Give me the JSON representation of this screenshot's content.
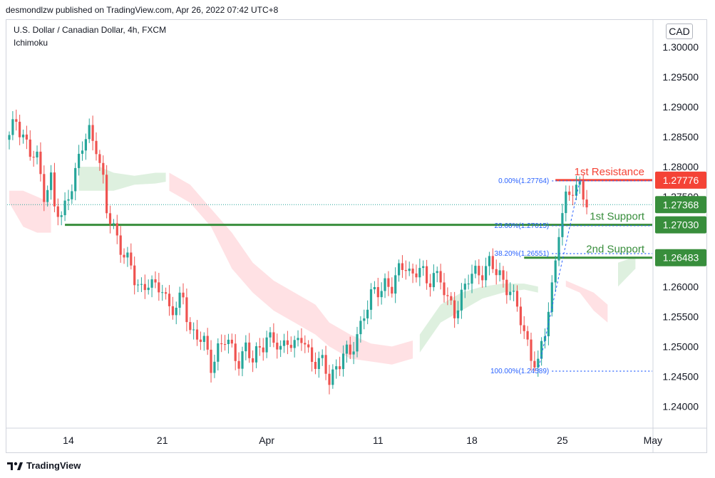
{
  "header": {
    "published": "desmondlzw published on TradingView.com, Apr 26, 2022 07:42 UTC+8"
  },
  "chart_header": {
    "symbol_line": "U.S. Dollar / Canadian Dollar, 4h, FXCM",
    "indicator": "Ichimoku",
    "currency": "CAD"
  },
  "footer": {
    "brand": "TradingView"
  },
  "colors": {
    "up": "#26a69a",
    "down": "#ef5350",
    "support": "#388e3c",
    "resistance": "#f44336",
    "fib": "#2962ff",
    "cloud_bull": "#c8e6c9",
    "cloud_bear": "#ffcdd2"
  },
  "chart_data": {
    "type": "candlestick",
    "ylim": [
      1.2365,
      1.3045
    ],
    "y_ticks": [
      "1.30000",
      "1.29500",
      "1.29000",
      "1.28500",
      "1.28000",
      "1.27500",
      "1.27000",
      "1.26500",
      "1.26000",
      "1.25500",
      "1.25000",
      "1.24500",
      "1.24000"
    ],
    "y_tick_values": [
      1.3,
      1.295,
      1.29,
      1.285,
      1.28,
      1.275,
      1.27,
      1.265,
      1.26,
      1.255,
      1.25,
      1.245,
      1.24
    ],
    "x_ticks": [
      "14",
      "21",
      "Apr",
      "11",
      "18",
      "25",
      "May"
    ],
    "x_tick_index": [
      17,
      44,
      74,
      106,
      133,
      159,
      185
    ],
    "n_bars": 185,
    "current_price_line": 1.27368,
    "levels": [
      {
        "name": "1st Resistance",
        "value": 1.27776,
        "tag": "1.27776",
        "kind": "resistance",
        "start_index": 157
      },
      {
        "name": "1st Support",
        "value": 1.2703,
        "tag": "1.27030",
        "kind": "support",
        "start_index": 16
      },
      {
        "name": "2nd Support",
        "value": 1.26483,
        "tag": "1.26483",
        "kind": "support",
        "start_index": 148
      },
      {
        "name": "",
        "value": 1.27368,
        "tag": "1.27368",
        "kind": "current",
        "start_index": 0
      }
    ],
    "fib_levels": [
      {
        "label": "0.00%(1.27764)",
        "value": 1.27764
      },
      {
        "label": "23.60%(1.27015)",
        "value": 1.27015
      },
      {
        "label": "38.20%(1.26551)",
        "value": 1.26551
      },
      {
        "label": "100.00%(1.24589)",
        "value": 1.24589
      }
    ],
    "fib_start_index": 156,
    "close_anchors": [
      [
        0,
        1.2845
      ],
      [
        2,
        1.288
      ],
      [
        4,
        1.2855
      ],
      [
        6,
        1.282
      ],
      [
        8,
        1.281
      ],
      [
        10,
        1.276
      ],
      [
        12,
        1.278
      ],
      [
        13,
        1.273
      ],
      [
        15,
        1.271
      ],
      [
        17,
        1.276
      ],
      [
        19,
        1.279
      ],
      [
        21,
        1.283
      ],
      [
        23,
        1.286
      ],
      [
        25,
        1.284
      ],
      [
        27,
        1.277
      ],
      [
        28,
        1.272
      ],
      [
        30,
        1.27
      ],
      [
        32,
        1.267
      ],
      [
        34,
        1.264
      ],
      [
        36,
        1.261
      ],
      [
        38,
        1.26
      ],
      [
        40,
        1.261
      ],
      [
        42,
        1.259
      ],
      [
        44,
        1.26
      ],
      [
        46,
        1.257
      ],
      [
        48,
        1.256
      ],
      [
        50,
        1.258
      ],
      [
        52,
        1.253
      ],
      [
        54,
        1.252
      ],
      [
        56,
        1.25
      ],
      [
        58,
        1.247
      ],
      [
        60,
        1.25
      ],
      [
        62,
        1.251
      ],
      [
        64,
        1.249
      ],
      [
        66,
        1.248
      ],
      [
        68,
        1.25
      ],
      [
        70,
        1.247
      ],
      [
        72,
        1.25
      ],
      [
        74,
        1.252
      ],
      [
        76,
        1.2505
      ],
      [
        78,
        1.249
      ],
      [
        80,
        1.252
      ],
      [
        82,
        1.25
      ],
      [
        84,
        1.251
      ],
      [
        86,
        1.249
      ],
      [
        88,
        1.248
      ],
      [
        90,
        1.247
      ],
      [
        92,
        1.244
      ],
      [
        94,
        1.247
      ],
      [
        96,
        1.249
      ],
      [
        98,
        1.248
      ],
      [
        100,
        1.252
      ],
      [
        102,
        1.256
      ],
      [
        104,
        1.258
      ],
      [
        106,
        1.259
      ],
      [
        108,
        1.261
      ],
      [
        110,
        1.26
      ],
      [
        112,
        1.262
      ],
      [
        114,
        1.264
      ],
      [
        116,
        1.262
      ],
      [
        118,
        1.263
      ],
      [
        120,
        1.26
      ],
      [
        122,
        1.263
      ],
      [
        124,
        1.261
      ],
      [
        126,
        1.257
      ],
      [
        128,
        1.256
      ],
      [
        130,
        1.259
      ],
      [
        132,
        1.261
      ],
      [
        134,
        1.262
      ],
      [
        136,
        1.263
      ],
      [
        138,
        1.264
      ],
      [
        140,
        1.262
      ],
      [
        142,
        1.261
      ],
      [
        144,
        1.26
      ],
      [
        146,
        1.256
      ],
      [
        148,
        1.252
      ],
      [
        150,
        1.249
      ],
      [
        152,
        1.247
      ],
      [
        154,
        1.252
      ],
      [
        156,
        1.26
      ],
      [
        158,
        1.27
      ],
      [
        160,
        1.274
      ],
      [
        162,
        1.276
      ],
      [
        164,
        1.2775
      ],
      [
        165,
        1.276
      ],
      [
        166,
        1.2737
      ]
    ],
    "cloud_bull": [
      [
        20,
        1.276,
        1.28
      ],
      [
        26,
        1.276,
        1.28
      ],
      [
        30,
        1.276,
        1.279
      ],
      [
        36,
        1.277,
        1.2785
      ],
      [
        42,
        1.2772,
        1.279
      ],
      [
        45,
        1.2775,
        1.279
      ],
      [
        118,
        1.249,
        1.252
      ],
      [
        124,
        1.254,
        1.257
      ],
      [
        130,
        1.256,
        1.259
      ],
      [
        136,
        1.258,
        1.26
      ],
      [
        142,
        1.259,
        1.2605
      ],
      [
        148,
        1.2595,
        1.2605
      ],
      [
        152,
        1.259,
        1.26
      ],
      [
        175,
        1.26,
        1.264
      ],
      [
        180,
        1.263,
        1.265
      ]
    ],
    "cloud_bear": [
      [
        0,
        1.274,
        1.276
      ],
      [
        4,
        1.27,
        1.276
      ],
      [
        8,
        1.269,
        1.275
      ],
      [
        12,
        1.269,
        1.274
      ],
      [
        46,
        1.276,
        1.279
      ],
      [
        52,
        1.274,
        1.277
      ],
      [
        58,
        1.27,
        1.273
      ],
      [
        64,
        1.263,
        1.269
      ],
      [
        70,
        1.259,
        1.264
      ],
      [
        76,
        1.256,
        1.261
      ],
      [
        82,
        1.254,
        1.259
      ],
      [
        88,
        1.252,
        1.257
      ],
      [
        92,
        1.25,
        1.254
      ],
      [
        98,
        1.248,
        1.252
      ],
      [
        104,
        1.2475,
        1.2505
      ],
      [
        110,
        1.247,
        1.25
      ],
      [
        116,
        1.248,
        1.251
      ],
      [
        160,
        1.26,
        1.261
      ],
      [
        164,
        1.259,
        1.26
      ],
      [
        168,
        1.256,
        1.259
      ],
      [
        172,
        1.254,
        1.257
      ]
    ]
  }
}
